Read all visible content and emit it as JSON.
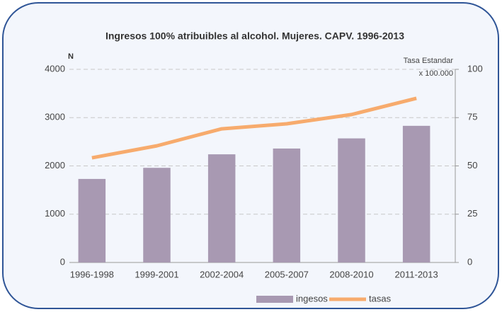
{
  "chart_data": {
    "type": "bar-line",
    "title": "Ingresos 100% atribuibles al alcohol. Mujeres. CAPV. 1996-2013",
    "y_label": "N",
    "y2_label": "Tasa Estandar",
    "y2_label_2": "x 100.000",
    "categories": [
      "1996-1998",
      "1999-2001",
      "2002-2004",
      "2005-2007",
      "2008-2010",
      "2011-2013"
    ],
    "series": [
      {
        "name": "ingesos",
        "type": "bar",
        "color": "#a899b2",
        "values": [
          1730,
          1960,
          2240,
          2360,
          2570,
          2830
        ]
      },
      {
        "name": "tasas",
        "type": "line",
        "color": "#f7ab6d",
        "axis": "y2",
        "values": [
          54.2,
          60.4,
          69.2,
          71.8,
          76.6,
          85
        ]
      }
    ],
    "ylim": [
      0,
      4000
    ],
    "yticks": [
      0,
      1000,
      2000,
      3000,
      4000
    ],
    "y2lim": [
      0,
      100
    ],
    "y2ticks": [
      0,
      25,
      50,
      75,
      100
    ],
    "grid": true,
    "legend": "bottom"
  }
}
